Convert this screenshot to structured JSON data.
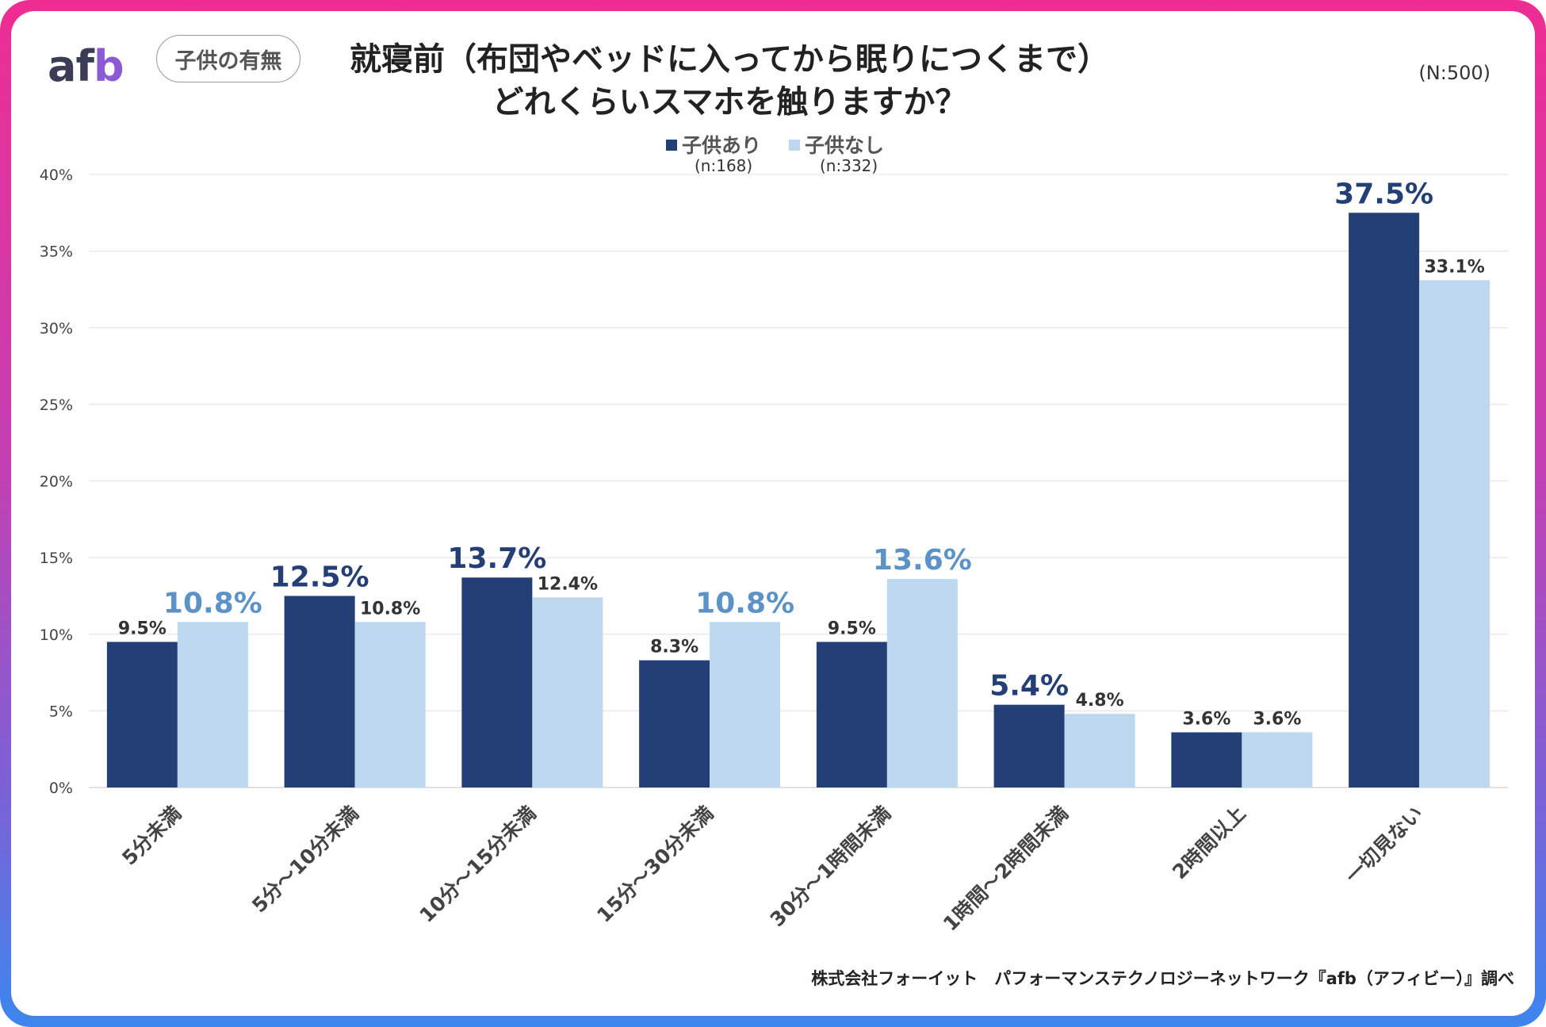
{
  "brand": {
    "logo_text_af": "af",
    "logo_text_b": "b",
    "filter_label": "子供の有無"
  },
  "header": {
    "title_line1": "就寝前（布団やベッドに入ってから眠りにつくまで）",
    "title_line2": "どれくらいスマホを触りますか？",
    "sample_size": "(N:500)"
  },
  "legend": {
    "items": [
      {
        "label": "子供あり",
        "n": "(n:168)",
        "color": "#233f76"
      },
      {
        "label": "子供なし",
        "n": "(n:332)",
        "color": "#bcd7ee"
      }
    ]
  },
  "footer": {
    "source": "株式会社フォーイット　パフォーマンステクノロジーネットワーク『afb（アフィビー）』調べ"
  },
  "colors": {
    "dark_bar": "#233f76",
    "light_bar": "#bcd7ee",
    "highlight_dark": "#233f76",
    "highlight_light": "#5b93c9",
    "grid": "#e6e6e6"
  },
  "chart_data": {
    "type": "bar",
    "title": "就寝前（布団やベッドに入ってから眠りにつくまで）どれくらいスマホを触りますか？",
    "xlabel": "",
    "ylabel": "",
    "ylim": [
      0,
      40
    ],
    "yticks": [
      "0%",
      "5%",
      "10%",
      "15%",
      "20%",
      "25%",
      "30%",
      "35%",
      "40%"
    ],
    "grid": true,
    "legend_position": "top-center",
    "categories": [
      "5分未満",
      "5分～10分未満",
      "10分～15分未満",
      "15分～30分未満",
      "30分～1時間未満",
      "1時間～2時間未満",
      "2時間以上",
      "一切見ない"
    ],
    "series": [
      {
        "name": "子供あり",
        "values": [
          9.5,
          12.5,
          13.7,
          8.3,
          9.5,
          5.4,
          3.6,
          37.5
        ],
        "labels": [
          "9.5%",
          "12.5%",
          "13.7%",
          "8.3%",
          "9.5%",
          "5.4%",
          "3.6%",
          "37.5%"
        ],
        "highlight": [
          false,
          true,
          true,
          false,
          false,
          true,
          false,
          true
        ]
      },
      {
        "name": "子供なし",
        "values": [
          10.8,
          10.8,
          12.4,
          10.8,
          13.6,
          4.8,
          3.6,
          33.1
        ],
        "labels": [
          "10.8%",
          "10.8%",
          "12.4%",
          "10.8%",
          "13.6%",
          "4.8%",
          "3.6%",
          "33.1%"
        ],
        "highlight": [
          true,
          false,
          false,
          true,
          true,
          false,
          false,
          false
        ]
      }
    ]
  }
}
